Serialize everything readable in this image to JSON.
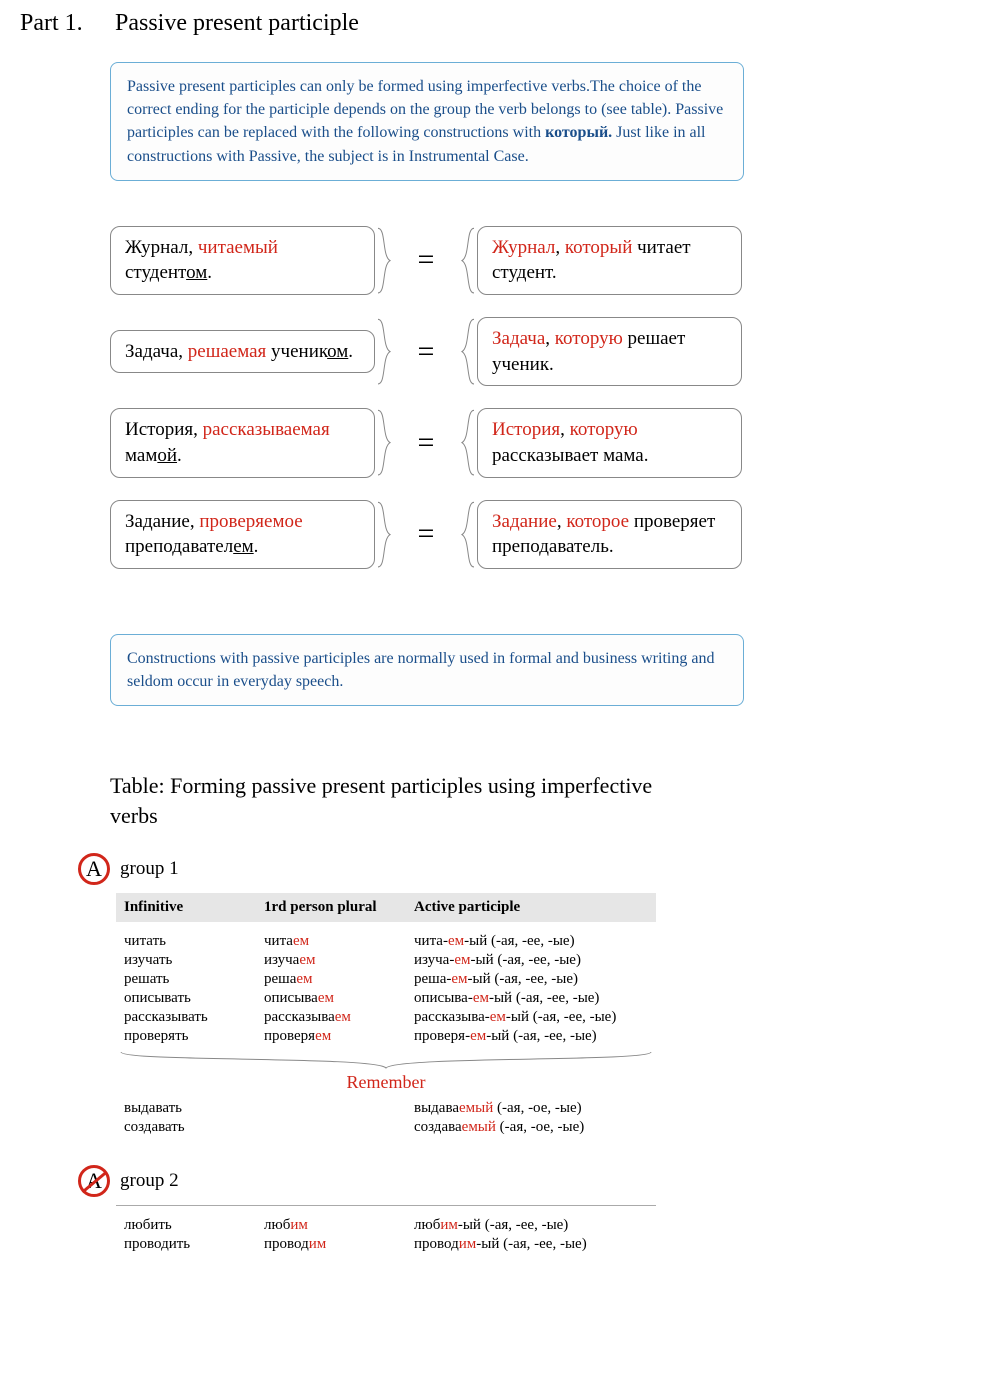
{
  "colors": {
    "red": "#d1261a",
    "blue_text": "#1a4e8a",
    "blue_border": "#6baed6",
    "table_header_bg": "#e6e6e6",
    "bubble_border": "#888888",
    "page_bg": "#ffffff"
  },
  "header": {
    "part": "Part 1.",
    "title": "Passive present participle"
  },
  "intro": {
    "segments": [
      {
        "t": "Passive present participles can only be formed using imperfective verbs.The choice of the correct ending for the participle depends on the group the verb belongs to (see table). Passive participles can be replaced with the following constructions with "
      },
      {
        "t": "который.",
        "bold": true
      },
      {
        "t": " Just like in all constructions with Passive, the subject is in Instrumental Case."
      }
    ]
  },
  "equiv": [
    {
      "left": [
        {
          "t": "Журнал, "
        },
        {
          "t": "читаемый",
          "red": true
        },
        {
          "t": " студент"
        },
        {
          "t": "ом",
          "ul": true
        },
        {
          "t": "."
        }
      ],
      "right": [
        {
          "t": "Журнал",
          "red": true
        },
        {
          "t": ", "
        },
        {
          "t": "который",
          "red": true
        },
        {
          "t": " читает студент."
        }
      ]
    },
    {
      "left": [
        {
          "t": "Задача, "
        },
        {
          "t": "решаемая",
          "red": true
        },
        {
          "t": " ученик"
        },
        {
          "t": "ом",
          "ul": true
        },
        {
          "t": "."
        }
      ],
      "right": [
        {
          "t": "Задача",
          "red": true
        },
        {
          "t": ", "
        },
        {
          "t": "которую",
          "red": true
        },
        {
          "t": " решает ученик."
        }
      ]
    },
    {
      "left": [
        {
          "t": "История, "
        },
        {
          "t": "рассказываемая",
          "red": true
        },
        {
          "t": " мам"
        },
        {
          "t": "ой",
          "ul": true
        },
        {
          "t": "."
        }
      ],
      "right": [
        {
          "t": "История",
          "red": true
        },
        {
          "t": ", "
        },
        {
          "t": "которую",
          "red": true
        },
        {
          "t": " рассказывает мама."
        }
      ]
    },
    {
      "left": [
        {
          "t": "Задание, "
        },
        {
          "t": "проверяемое",
          "red": true
        },
        {
          "t": " преподавател"
        },
        {
          "t": "ем",
          "ul": true
        },
        {
          "t": "."
        }
      ],
      "right": [
        {
          "t": "Задание",
          "red": true
        },
        {
          "t": ", "
        },
        {
          "t": "которое",
          "red": true
        },
        {
          "t": " проверяет преподаватель."
        }
      ]
    }
  ],
  "eq_sign": "=",
  "note": "Constructions with passive participles are normally used in formal and business writing and seldom occur in everyday speech.",
  "table_title": "Table: Forming passive present participles using imperfective verbs",
  "group1": {
    "icon_letter": "A",
    "strike": false,
    "label": "group 1",
    "headers": [
      "Infinitive",
      "1rd person plural",
      "Active participle"
    ],
    "rows": [
      {
        "c1": [
          {
            "t": "читать"
          }
        ],
        "c2": [
          {
            "t": "чита"
          },
          {
            "t": "ем",
            "red": true
          }
        ],
        "c3": [
          {
            "t": "чита-"
          },
          {
            "t": "ем",
            "red": true
          },
          {
            "t": "-ый (-ая, -ее, -ые)"
          }
        ]
      },
      {
        "c1": [
          {
            "t": "изучать"
          }
        ],
        "c2": [
          {
            "t": "изуча"
          },
          {
            "t": "ем",
            "red": true
          }
        ],
        "c3": [
          {
            "t": "изуча-"
          },
          {
            "t": "ем",
            "red": true
          },
          {
            "t": "-ый (-ая, -ее, -ые)"
          }
        ]
      },
      {
        "c1": [
          {
            "t": "решать"
          }
        ],
        "c2": [
          {
            "t": "реша"
          },
          {
            "t": "ем",
            "red": true
          }
        ],
        "c3": [
          {
            "t": "реша-"
          },
          {
            "t": "ем",
            "red": true
          },
          {
            "t": "-ый (-ая, -ее, -ые)"
          }
        ]
      },
      {
        "c1": [
          {
            "t": "описывать"
          }
        ],
        "c2": [
          {
            "t": "описыва"
          },
          {
            "t": "ем",
            "red": true
          }
        ],
        "c3": [
          {
            "t": "описыва-"
          },
          {
            "t": "ем",
            "red": true
          },
          {
            "t": "-ый (-ая, -ее, -ые)"
          }
        ]
      },
      {
        "c1": [
          {
            "t": "рассказывать"
          }
        ],
        "c2": [
          {
            "t": "рассказыва"
          },
          {
            "t": "ем",
            "red": true
          }
        ],
        "c3": [
          {
            "t": "рассказыва-"
          },
          {
            "t": "ем",
            "red": true
          },
          {
            "t": "-ый (-ая, -ее, -ые)"
          }
        ]
      },
      {
        "c1": [
          {
            "t": "проверять"
          }
        ],
        "c2": [
          {
            "t": "проверя"
          },
          {
            "t": "ем",
            "red": true
          }
        ],
        "c3": [
          {
            "t": "проверя-"
          },
          {
            "t": "ем",
            "red": true
          },
          {
            "t": "-ый (-ая, -ее, -ые)"
          }
        ]
      }
    ],
    "remember_label": "Remember",
    "remember_rows": [
      {
        "c1": [
          {
            "t": "выдавать"
          }
        ],
        "c2": [
          {
            "t": "выдава"
          },
          {
            "t": "емый",
            "red": true
          },
          {
            "t": " (-ая, -ое, -ые)"
          }
        ]
      },
      {
        "c1": [
          {
            "t": "создавать"
          }
        ],
        "c2": [
          {
            "t": "создава"
          },
          {
            "t": "емый",
            "red": true
          },
          {
            "t": " (-ая, -ое, -ые)"
          }
        ]
      }
    ]
  },
  "group2": {
    "icon_letter": "A",
    "strike": true,
    "label": "group 2",
    "rows": [
      {
        "c1": [
          {
            "t": "любить"
          }
        ],
        "c2": [
          {
            "t": "люб"
          },
          {
            "t": "им",
            "red": true
          }
        ],
        "c3": [
          {
            "t": "люб"
          },
          {
            "t": "им",
            "red": true
          },
          {
            "t": "-ый (-ая, -ее, -ые)"
          }
        ]
      },
      {
        "c1": [
          {
            "t": "проводить"
          }
        ],
        "c2": [
          {
            "t": "провод"
          },
          {
            "t": "им",
            "red": true
          }
        ],
        "c3": [
          {
            "t": "провод"
          },
          {
            "t": "им",
            "red": true
          },
          {
            "t": "-ый (-ая, -ее, -ые)"
          }
        ]
      }
    ]
  }
}
